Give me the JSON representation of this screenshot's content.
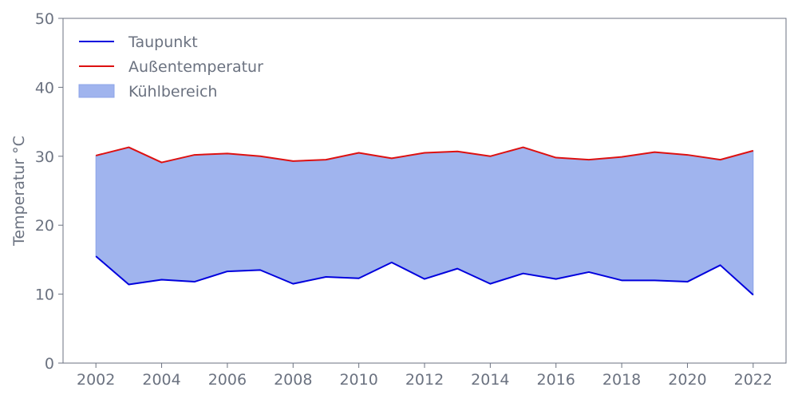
{
  "chart_data": {
    "type": "line",
    "title": "",
    "xlabel": "",
    "ylabel": "Temperatur °C",
    "x": [
      2002,
      2003,
      2004,
      2005,
      2006,
      2007,
      2008,
      2009,
      2010,
      2011,
      2012,
      2013,
      2014,
      2015,
      2016,
      2017,
      2018,
      2019,
      2020,
      2021,
      2022
    ],
    "xlim": [
      2001,
      2023
    ],
    "ylim": [
      0,
      50
    ],
    "x_ticks": [
      2002,
      2004,
      2006,
      2008,
      2010,
      2012,
      2014,
      2016,
      2018,
      2020,
      2022
    ],
    "y_ticks": [
      0,
      10,
      20,
      30,
      40,
      50
    ],
    "x_tick_labels": [
      "2002",
      "2004",
      "2006",
      "2008",
      "2010",
      "2012",
      "2014",
      "2016",
      "2018",
      "2020",
      "2022"
    ],
    "y_tick_labels": [
      "0",
      "10",
      "20",
      "30",
      "40",
      "50"
    ],
    "grid": false,
    "legend_position": "top-left",
    "series": [
      {
        "name": "Taupunkt",
        "color": "#0000dd",
        "values": [
          15.5,
          11.4,
          12.1,
          11.8,
          13.3,
          13.5,
          11.5,
          12.5,
          12.3,
          14.6,
          12.2,
          13.7,
          11.5,
          13.0,
          12.2,
          13.2,
          12.0,
          12.0,
          11.8,
          14.2,
          9.9
        ]
      },
      {
        "name": "Außentemperatur",
        "color": "#dd1111",
        "values": [
          30.1,
          31.3,
          29.1,
          30.2,
          30.4,
          30.0,
          29.3,
          29.5,
          30.5,
          29.7,
          30.5,
          30.7,
          30.0,
          31.3,
          29.8,
          29.5,
          29.9,
          30.6,
          30.2,
          29.5,
          30.8
        ]
      }
    ],
    "fill": {
      "name": "Kühlbereich",
      "between": [
        "Taupunkt",
        "Außentemperatur"
      ],
      "color": "#a0b4ee",
      "edge_color": "#8ca4e8"
    },
    "axis_color": "#6b7280",
    "text_color": "#6b7280"
  }
}
